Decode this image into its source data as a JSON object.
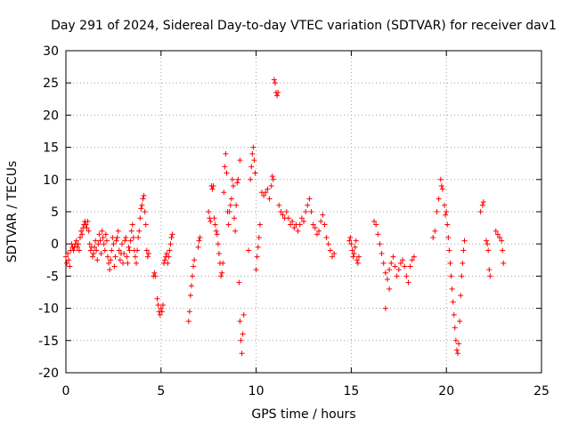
{
  "chart_data": {
    "type": "scatter",
    "title": "Day 291 of 2024, Sidereal Day-to-day VTEC variation (SDTVAR) for receiver dav1",
    "xlabel": "GPS time / hours",
    "ylabel": "SDTVAR / TECUs",
    "xlim": [
      0,
      25
    ],
    "ylim": [
      -20,
      30
    ],
    "xticks": [
      0,
      5,
      10,
      15,
      20,
      25
    ],
    "yticks": [
      -20,
      -15,
      -10,
      -5,
      0,
      5,
      10,
      15,
      20,
      25,
      30
    ],
    "grid": true,
    "marker": "+",
    "color": "#ff0000",
    "series": [
      {
        "name": "SDTVAR",
        "points": [
          [
            0.0,
            -2.0
          ],
          [
            0.05,
            -3.0
          ],
          [
            0.1,
            -1.5
          ],
          [
            0.15,
            -2.5
          ],
          [
            0.2,
            -3.5
          ],
          [
            0.25,
            -1.0
          ],
          [
            0.3,
            0.0
          ],
          [
            0.35,
            -0.5
          ],
          [
            0.4,
            -1.0
          ],
          [
            0.45,
            -0.5
          ],
          [
            0.5,
            0.0
          ],
          [
            0.55,
            0.5
          ],
          [
            0.6,
            -0.5
          ],
          [
            0.65,
            0.0
          ],
          [
            0.7,
            -1.0
          ],
          [
            0.75,
            1.0
          ],
          [
            0.8,
            2.0
          ],
          [
            0.85,
            1.5
          ],
          [
            0.9,
            2.5
          ],
          [
            0.95,
            3.0
          ],
          [
            1.0,
            3.5
          ],
          [
            1.05,
            3.0
          ],
          [
            1.1,
            2.5
          ],
          [
            1.15,
            3.5
          ],
          [
            1.2,
            2.0
          ],
          [
            1.25,
            0.0
          ],
          [
            1.3,
            -1.0
          ],
          [
            1.35,
            -0.5
          ],
          [
            1.4,
            -2.0
          ],
          [
            1.45,
            -1.5
          ],
          [
            1.5,
            -0.5
          ],
          [
            1.55,
            0.5
          ],
          [
            1.6,
            -1.0
          ],
          [
            1.65,
            -2.5
          ],
          [
            1.7,
            0.0
          ],
          [
            1.75,
            1.5
          ],
          [
            1.8,
            0.5
          ],
          [
            1.85,
            -1.5
          ],
          [
            1.9,
            2.0
          ],
          [
            1.95,
            1.0
          ],
          [
            2.0,
            0.0
          ],
          [
            2.05,
            -1.0
          ],
          [
            2.1,
            1.5
          ],
          [
            2.15,
            0.5
          ],
          [
            2.2,
            -2.0
          ],
          [
            2.25,
            -3.0
          ],
          [
            2.3,
            -4.0
          ],
          [
            2.35,
            -2.5
          ],
          [
            2.4,
            -1.0
          ],
          [
            2.45,
            1.0
          ],
          [
            2.5,
            0.0
          ],
          [
            2.55,
            -3.5
          ],
          [
            2.6,
            -2.0
          ],
          [
            2.65,
            0.5
          ],
          [
            2.7,
            1.0
          ],
          [
            2.75,
            2.0
          ],
          [
            2.8,
            -1.0
          ],
          [
            2.85,
            -2.5
          ],
          [
            2.9,
            -1.5
          ],
          [
            2.95,
            0.0
          ],
          [
            3.0,
            -3.0
          ],
          [
            3.05,
            -1.5
          ],
          [
            3.1,
            0.5
          ],
          [
            3.15,
            1.0
          ],
          [
            3.2,
            -2.0
          ],
          [
            3.25,
            -3.0
          ],
          [
            3.3,
            -0.5
          ],
          [
            3.35,
            -1.0
          ],
          [
            3.4,
            0.5
          ],
          [
            3.45,
            2.0
          ],
          [
            3.5,
            3.0
          ],
          [
            3.55,
            1.0
          ],
          [
            3.6,
            -1.0
          ],
          [
            3.65,
            -2.0
          ],
          [
            3.7,
            -3.0
          ],
          [
            3.75,
            -1.0
          ],
          [
            3.8,
            1.0
          ],
          [
            3.85,
            2.0
          ],
          [
            3.9,
            4.0
          ],
          [
            3.95,
            5.5
          ],
          [
            4.0,
            6.0
          ],
          [
            4.05,
            7.0
          ],
          [
            4.1,
            7.5
          ],
          [
            4.15,
            5.0
          ],
          [
            4.2,
            3.0
          ],
          [
            4.25,
            -1.0
          ],
          [
            4.3,
            -2.0
          ],
          [
            4.35,
            -1.5
          ],
          [
            4.6,
            -5.0
          ],
          [
            4.65,
            -4.5
          ],
          [
            4.7,
            -5.0
          ],
          [
            4.8,
            -8.5
          ],
          [
            4.85,
            -9.5
          ],
          [
            4.9,
            -10.5
          ],
          [
            4.95,
            -11.0
          ],
          [
            5.0,
            -10.0
          ],
          [
            5.05,
            -10.5
          ],
          [
            5.1,
            -9.5
          ],
          [
            5.15,
            -3.0
          ],
          [
            5.2,
            -2.5
          ],
          [
            5.25,
            -2.0
          ],
          [
            5.3,
            -1.5
          ],
          [
            5.35,
            -3.0
          ],
          [
            5.4,
            -2.0
          ],
          [
            5.45,
            -1.0
          ],
          [
            5.5,
            0.0
          ],
          [
            5.55,
            1.0
          ],
          [
            5.6,
            1.5
          ],
          [
            6.45,
            -12.0
          ],
          [
            6.5,
            -10.5
          ],
          [
            6.55,
            -8.0
          ],
          [
            6.6,
            -6.5
          ],
          [
            6.65,
            -5.0
          ],
          [
            6.7,
            -3.5
          ],
          [
            6.75,
            -2.5
          ],
          [
            6.95,
            -0.5
          ],
          [
            7.0,
            0.5
          ],
          [
            7.05,
            1.0
          ],
          [
            7.5,
            5.0
          ],
          [
            7.55,
            4.0
          ],
          [
            7.6,
            3.5
          ],
          [
            7.65,
            9.0
          ],
          [
            7.7,
            8.5
          ],
          [
            7.75,
            9.0
          ],
          [
            7.8,
            4.0
          ],
          [
            7.85,
            3.0
          ],
          [
            7.9,
            2.0
          ],
          [
            7.95,
            1.5
          ],
          [
            8.0,
            0.0
          ],
          [
            8.05,
            -1.5
          ],
          [
            8.1,
            -3.0
          ],
          [
            8.15,
            -5.0
          ],
          [
            8.2,
            -4.5
          ],
          [
            8.25,
            -3.0
          ],
          [
            8.3,
            8.0
          ],
          [
            8.35,
            12.0
          ],
          [
            8.4,
            14.0
          ],
          [
            8.45,
            11.0
          ],
          [
            8.5,
            5.0
          ],
          [
            8.55,
            3.0
          ],
          [
            8.6,
            5.0
          ],
          [
            8.65,
            6.0
          ],
          [
            8.7,
            7.0
          ],
          [
            8.75,
            10.0
          ],
          [
            8.8,
            9.0
          ],
          [
            8.85,
            4.0
          ],
          [
            8.9,
            2.0
          ],
          [
            8.95,
            6.0
          ],
          [
            9.0,
            9.5
          ],
          [
            9.05,
            10.0
          ],
          [
            9.1,
            -6.0
          ],
          [
            9.15,
            -12.0
          ],
          [
            9.2,
            -15.0
          ],
          [
            9.25,
            -17.0
          ],
          [
            9.3,
            -14.0
          ],
          [
            9.35,
            -11.0
          ],
          [
            9.15,
            13.0
          ],
          [
            9.6,
            -1.0
          ],
          [
            9.7,
            10.0
          ],
          [
            9.75,
            12.0
          ],
          [
            9.8,
            14.0
          ],
          [
            9.85,
            15.0
          ],
          [
            9.9,
            13.0
          ],
          [
            9.95,
            11.0
          ],
          [
            10.0,
            -4.0
          ],
          [
            10.05,
            -2.0
          ],
          [
            10.1,
            -0.5
          ],
          [
            10.15,
            1.0
          ],
          [
            10.2,
            3.0
          ],
          [
            10.3,
            8.0
          ],
          [
            10.4,
            7.5
          ],
          [
            10.5,
            8.0
          ],
          [
            10.6,
            8.5
          ],
          [
            10.7,
            7.0
          ],
          [
            10.8,
            9.0
          ],
          [
            10.85,
            10.5
          ],
          [
            10.9,
            10.0
          ],
          [
            10.95,
            25.5
          ],
          [
            11.0,
            25.0
          ],
          [
            11.05,
            23.5
          ],
          [
            11.1,
            23.0
          ],
          [
            11.15,
            23.5
          ],
          [
            11.2,
            6.0
          ],
          [
            11.3,
            5.0
          ],
          [
            11.4,
            4.5
          ],
          [
            11.5,
            4.0
          ],
          [
            11.6,
            5.0
          ],
          [
            11.7,
            4.0
          ],
          [
            11.8,
            3.0
          ],
          [
            11.9,
            3.5
          ],
          [
            12.0,
            2.5
          ],
          [
            12.1,
            3.0
          ],
          [
            12.2,
            2.0
          ],
          [
            12.3,
            3.0
          ],
          [
            12.4,
            4.0
          ],
          [
            12.5,
            3.5
          ],
          [
            12.6,
            5.0
          ],
          [
            12.7,
            6.0
          ],
          [
            12.8,
            7.0
          ],
          [
            12.9,
            5.0
          ],
          [
            13.0,
            3.0
          ],
          [
            13.1,
            2.5
          ],
          [
            13.2,
            1.5
          ],
          [
            13.3,
            2.0
          ],
          [
            13.4,
            3.5
          ],
          [
            13.5,
            4.5
          ],
          [
            13.6,
            3.0
          ],
          [
            13.7,
            1.0
          ],
          [
            13.8,
            0.0
          ],
          [
            13.9,
            -1.0
          ],
          [
            14.0,
            -2.0
          ],
          [
            14.1,
            -1.5
          ],
          [
            14.9,
            0.5
          ],
          [
            14.95,
            1.0
          ],
          [
            15.0,
            0.0
          ],
          [
            15.05,
            -1.0
          ],
          [
            15.1,
            -2.0
          ],
          [
            15.15,
            -1.5
          ],
          [
            15.2,
            -0.5
          ],
          [
            15.25,
            0.5
          ],
          [
            15.3,
            -2.5
          ],
          [
            15.35,
            -3.0
          ],
          [
            15.4,
            -2.0
          ],
          [
            16.2,
            3.5
          ],
          [
            16.3,
            3.0
          ],
          [
            16.4,
            1.5
          ],
          [
            16.5,
            0.0
          ],
          [
            16.6,
            -1.5
          ],
          [
            16.7,
            -3.0
          ],
          [
            16.8,
            -4.5
          ],
          [
            16.9,
            -5.5
          ],
          [
            17.0,
            -4.0
          ],
          [
            17.1,
            -3.0
          ],
          [
            17.2,
            -2.0
          ],
          [
            17.3,
            -3.5
          ],
          [
            17.4,
            -5.0
          ],
          [
            17.5,
            -4.0
          ],
          [
            17.6,
            -3.0
          ],
          [
            17.7,
            -2.5
          ],
          [
            17.8,
            -3.5
          ],
          [
            17.9,
            -5.0
          ],
          [
            18.0,
            -6.0
          ],
          [
            18.1,
            -3.5
          ],
          [
            18.2,
            -2.5
          ],
          [
            18.3,
            -2.0
          ],
          [
            16.8,
            -10.0
          ],
          [
            17.0,
            -7.0
          ],
          [
            19.3,
            1.0
          ],
          [
            19.4,
            2.0
          ],
          [
            19.5,
            5.0
          ],
          [
            19.6,
            7.0
          ],
          [
            19.7,
            10.0
          ],
          [
            19.75,
            9.0
          ],
          [
            19.8,
            8.5
          ],
          [
            19.9,
            6.0
          ],
          [
            19.95,
            4.5
          ],
          [
            20.0,
            5.0
          ],
          [
            20.05,
            3.0
          ],
          [
            20.1,
            1.0
          ],
          [
            20.15,
            -1.0
          ],
          [
            20.2,
            -3.0
          ],
          [
            20.25,
            -5.0
          ],
          [
            20.3,
            -7.0
          ],
          [
            20.35,
            -9.0
          ],
          [
            20.4,
            -11.0
          ],
          [
            20.45,
            -13.0
          ],
          [
            20.5,
            -15.0
          ],
          [
            20.55,
            -16.5
          ],
          [
            20.6,
            -17.0
          ],
          [
            20.65,
            -15.5
          ],
          [
            20.7,
            -12.0
          ],
          [
            20.75,
            -8.0
          ],
          [
            20.8,
            -5.0
          ],
          [
            20.85,
            -3.0
          ],
          [
            20.9,
            -1.0
          ],
          [
            20.95,
            0.5
          ],
          [
            21.8,
            5.0
          ],
          [
            21.9,
            6.0
          ],
          [
            21.95,
            6.5
          ],
          [
            22.1,
            0.5
          ],
          [
            22.15,
            0.0
          ],
          [
            22.2,
            -1.0
          ],
          [
            22.25,
            -4.0
          ],
          [
            22.3,
            -5.0
          ],
          [
            22.6,
            2.0
          ],
          [
            22.7,
            1.5
          ],
          [
            22.8,
            1.0
          ],
          [
            22.9,
            0.5
          ],
          [
            22.95,
            -1.0
          ],
          [
            23.0,
            -3.0
          ]
        ]
      }
    ]
  }
}
